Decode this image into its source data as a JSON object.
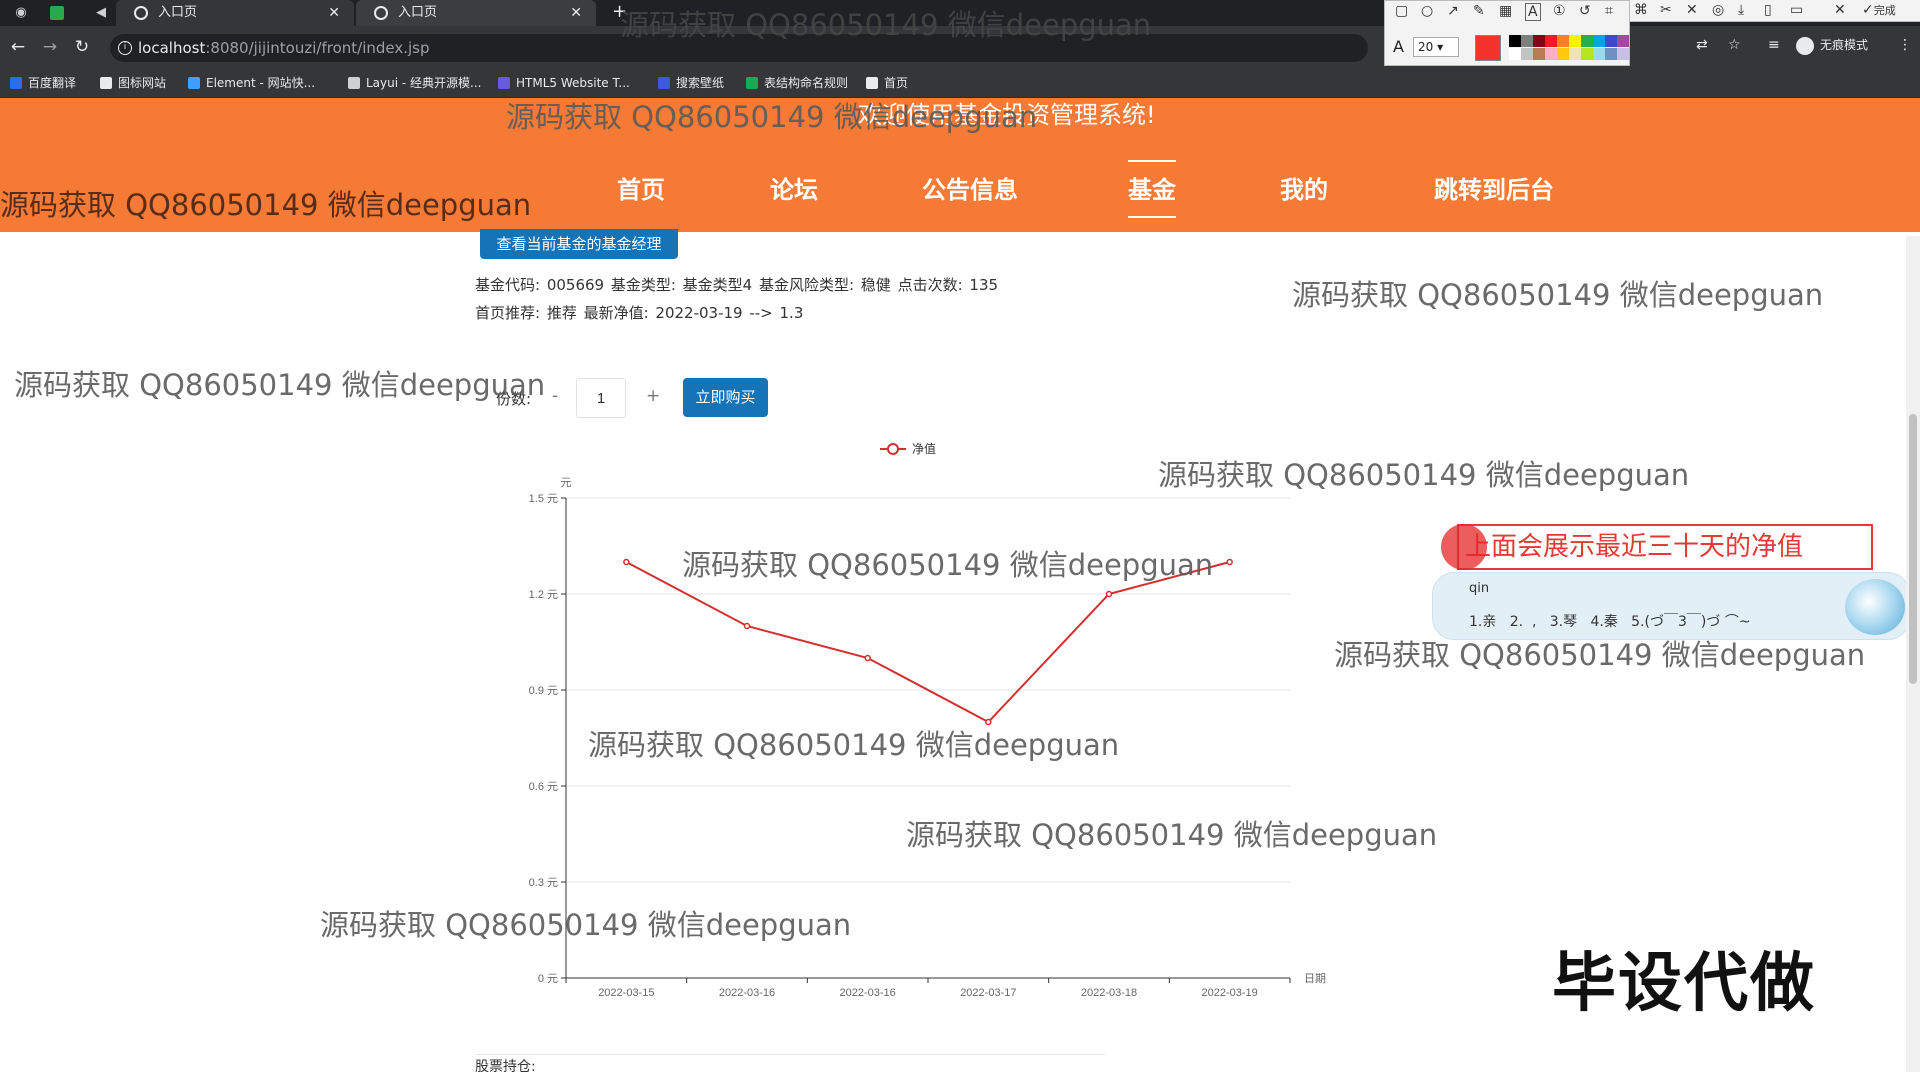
{
  "browser": {
    "tabs": [
      {
        "title": "入口页"
      },
      {
        "title": "入口页"
      }
    ],
    "new_tab": "+",
    "url_host": "localhost",
    "url_rest": ":8080/jijintouzi/front/index.jsp",
    "profile_label": "无痕模式",
    "bookmarks": [
      {
        "label": "百度翻译",
        "color": "#2b6de8"
      },
      {
        "label": "图标网站",
        "color": "#e8eaed"
      },
      {
        "label": "Element - 网站快...",
        "color": "#409eff"
      },
      {
        "label": "Layui - 经典开源模...",
        "color": "#cfd0d2"
      },
      {
        "label": "HTML5 Website T...",
        "color": "#6a5ae0"
      },
      {
        "label": "搜索壁纸",
        "color": "#3b5bdb"
      },
      {
        "label": "表结构命名规则",
        "color": "#1aaa55"
      },
      {
        "label": "首页",
        "color": "#e8eaed"
      }
    ],
    "shot_tool": {
      "font_size": "20",
      "current_color": "#f5332d",
      "swatches": [
        "#000000",
        "#7f7f7f",
        "#880015",
        "#ed1c24",
        "#ff7f27",
        "#fff200",
        "#22b14c",
        "#00a2e8",
        "#3f48cc",
        "#a349a4",
        "#ffffff",
        "#c3c3c3",
        "#b97a57",
        "#ffaec9",
        "#ffc90e",
        "#efe4b0",
        "#b5e61d",
        "#99d9ea",
        "#7092be",
        "#c8bfe7"
      ],
      "done_label": "完成"
    }
  },
  "site": {
    "welcome": "欢迎使用基金投资管理系统!",
    "nav": [
      {
        "label": "首页",
        "active": false
      },
      {
        "label": "论坛",
        "active": false
      },
      {
        "label": "公告信息",
        "active": false
      },
      {
        "label": "基金",
        "active": true
      },
      {
        "label": "我的",
        "active": false
      },
      {
        "label": "跳转到后台",
        "active": false
      }
    ]
  },
  "fund": {
    "manager_button": "查看当前基金的基金经理",
    "info_line1": "基金代码:  005669   基金类型:  基金类型4   基金风险类型:  稳健   点击次数:  135",
    "info_line2": "首页推荐:  推荐   最新净值:  2022-03-19 --> 1.3",
    "qty_label": "份数:",
    "qty_minus": "-",
    "qty_value": "1",
    "qty_plus": "+",
    "buy_button": "立即购买",
    "stock_label": "股票持仓:"
  },
  "chart_data": {
    "type": "line",
    "legend": [
      "净值"
    ],
    "legend_position": "top-center",
    "x": [
      "2022-03-15",
      "2022-03-16",
      "2022-03-16",
      "2022-03-17",
      "2022-03-18",
      "2022-03-19"
    ],
    "series": [
      {
        "name": "净值",
        "values": [
          1.3,
          1.1,
          1.0,
          0.8,
          1.2,
          1.3
        ],
        "color": "#d32f2f"
      }
    ],
    "yticks": [
      "0 元",
      "0.3 元",
      "0.6 元",
      "0.9 元",
      "1.2 元",
      "1.5 元"
    ],
    "ylim": [
      0,
      1.5
    ],
    "ylabel": "元",
    "xlabel": "日期",
    "grid": true
  },
  "annotation": {
    "text": "上面会展示最近三十天的净值",
    "ime_composition": "qin",
    "ime_candidates": "1.亲   2.  ,   3.琴   4.秦   5.(づ￣3￣)づ ⌒~"
  },
  "watermark": {
    "text": "源码获取 QQ86050149 微信deepguan",
    "stamp": "毕设代做"
  }
}
